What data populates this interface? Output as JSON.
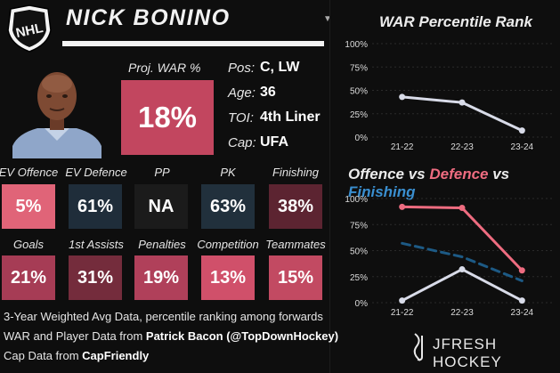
{
  "player": {
    "name": "NICK BONINO",
    "proj_war_label": "Proj. WAR %",
    "proj_war_value": "18%",
    "proj_war_color": "#c2465f",
    "info": [
      {
        "label": "Pos:",
        "value": "C, LW"
      },
      {
        "label": "Age:",
        "value": "36"
      },
      {
        "label": "TOI:",
        "value": "4th Liner"
      },
      {
        "label": "Cap:",
        "value": "UFA"
      }
    ]
  },
  "stats_row1": [
    {
      "label": "EV Offence",
      "value": "5%",
      "color": "#e06478"
    },
    {
      "label": "EV Defence",
      "value": "61%",
      "color": "#1f2d3a"
    },
    {
      "label": "PP",
      "value": "NA",
      "color": "#1b1b1b"
    },
    {
      "label": "PK",
      "value": "63%",
      "color": "#21303c"
    },
    {
      "label": "Finishing",
      "value": "38%",
      "color": "#5c2431"
    }
  ],
  "stats_row2": [
    {
      "label": "Goals",
      "value": "21%",
      "color": "#a63c55"
    },
    {
      "label": "1st Assists",
      "value": "31%",
      "color": "#742c3c"
    },
    {
      "label": "Penalties",
      "value": "19%",
      "color": "#b0405a"
    },
    {
      "label": "Competition",
      "value": "13%",
      "color": "#d0506a"
    },
    {
      "label": "Teammates",
      "value": "15%",
      "color": "#c24a62"
    }
  ],
  "footer": {
    "line1": "3-Year Weighted Avg Data, percentile ranking among forwards",
    "line2_prefix": "WAR and Player Data from ",
    "line2_source": "Patrick Bacon (@TopDownHockey)",
    "line3_prefix": "Cap Data from ",
    "line3_source": "CapFriendly",
    "brand": "JFRESH HOCKEY"
  },
  "chart_data": [
    {
      "type": "line",
      "title": "WAR Percentile Rank",
      "x": [
        "21-22",
        "22-23",
        "23-24"
      ],
      "ylim": [
        0,
        100
      ],
      "yticks": [
        "0%",
        "25%",
        "50%",
        "75%",
        "100%"
      ],
      "grid": true,
      "series": [
        {
          "values": [
            43,
            37,
            7
          ],
          "color": "#d8dbe8",
          "dashed": false
        }
      ]
    },
    {
      "type": "line",
      "title_parts": [
        {
          "text": "Offence",
          "color": "#ececec"
        },
        {
          "text": " vs ",
          "color": "#ececec"
        },
        {
          "text": "Defence",
          "color": "#ee6c80"
        },
        {
          "text": " vs ",
          "color": "#ececec"
        },
        {
          "text": "Finishing",
          "color": "#3a8fd0"
        }
      ],
      "x": [
        "21-22",
        "22-23",
        "23-24"
      ],
      "ylim": [
        0,
        100
      ],
      "yticks": [
        "0%",
        "25%",
        "50%",
        "75%",
        "100%"
      ],
      "grid": true,
      "series": [
        {
          "values": [
            92,
            91,
            31
          ],
          "color": "#ee6c80",
          "dashed": false
        },
        {
          "values": [
            57,
            44,
            21
          ],
          "color": "#1d5a85",
          "dashed": true
        },
        {
          "values": [
            2,
            32,
            2
          ],
          "color": "#d8dbe8",
          "dashed": false
        }
      ]
    }
  ]
}
